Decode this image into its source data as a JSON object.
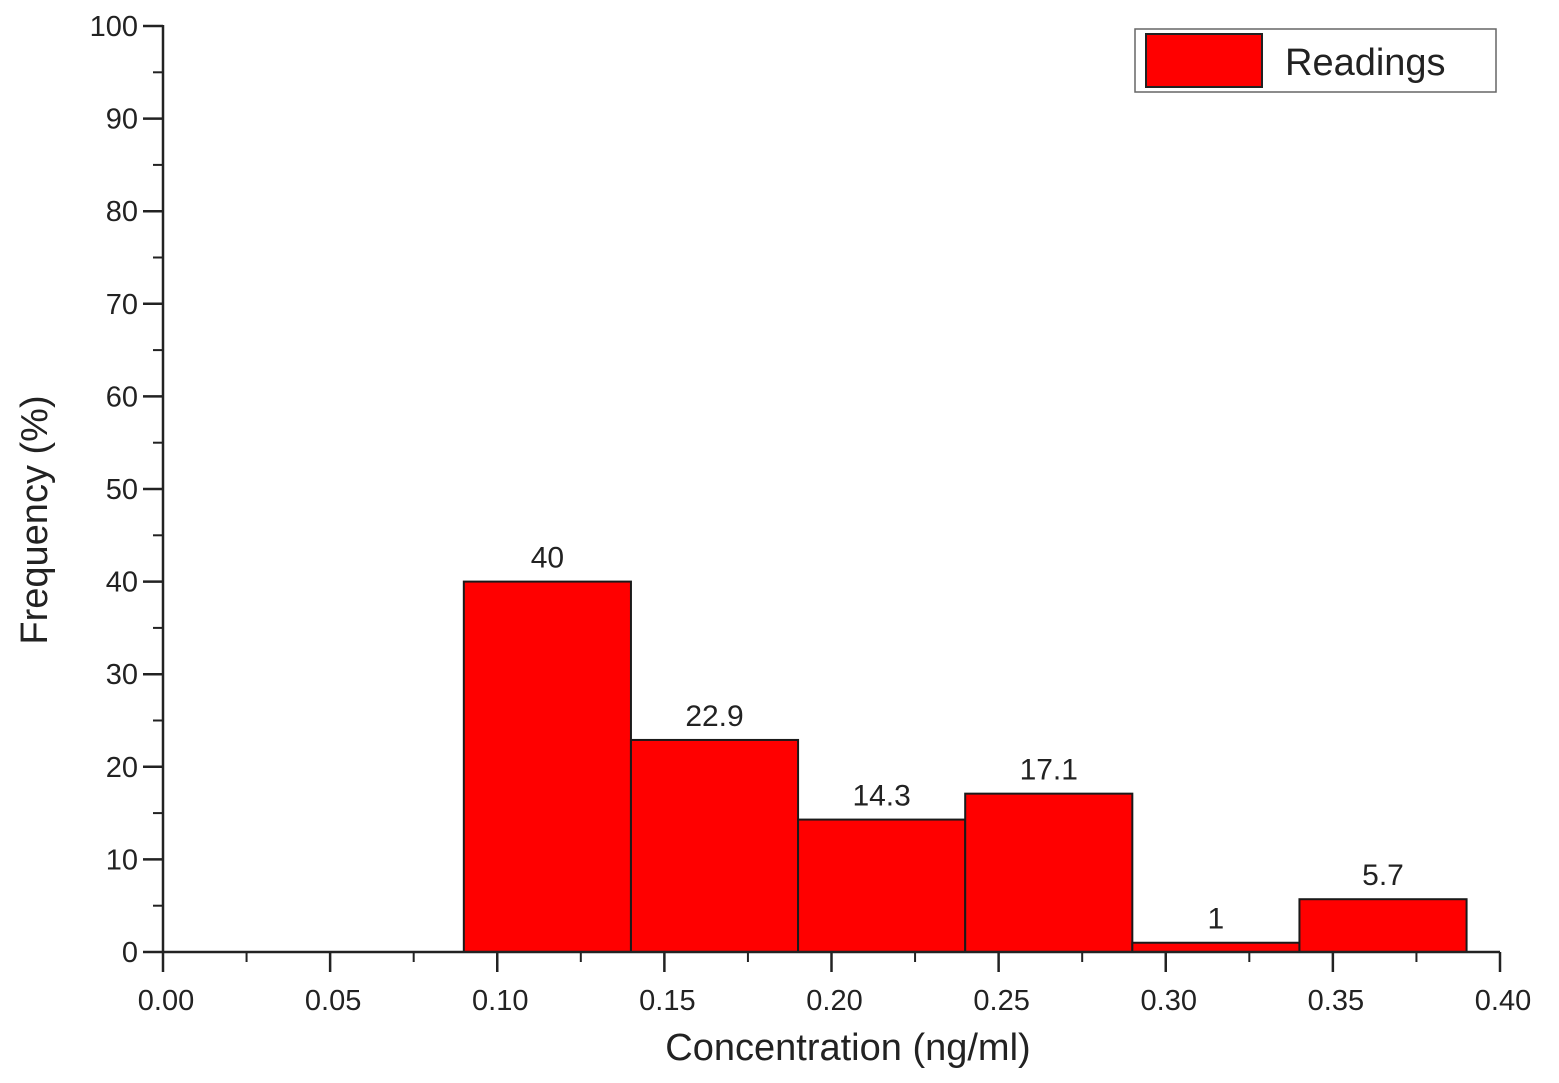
{
  "chart_data": {
    "type": "bar",
    "bars": [
      {
        "x0": 0.09,
        "x1": 0.14,
        "value": 40,
        "label": "40"
      },
      {
        "x0": 0.14,
        "x1": 0.19,
        "value": 22.9,
        "label": "22.9"
      },
      {
        "x0": 0.19,
        "x1": 0.24,
        "value": 14.3,
        "label": "14.3"
      },
      {
        "x0": 0.24,
        "x1": 0.29,
        "value": 17.1,
        "label": "17.1"
      },
      {
        "x0": 0.29,
        "x1": 0.34,
        "value": 1,
        "label": "1"
      },
      {
        "x0": 0.34,
        "x1": 0.39,
        "value": 5.7,
        "label": "5.7"
      }
    ],
    "series": [
      {
        "name": "Readings",
        "color": "#ff0000"
      }
    ],
    "xlabel": "Concentration (ng/ml)",
    "ylabel": "Frequency (%)",
    "xlim": [
      0.0,
      0.4
    ],
    "ylim": [
      0,
      100
    ],
    "xticks": [
      "0.00",
      "0.05",
      "0.10",
      "0.15",
      "0.20",
      "0.25",
      "0.30",
      "0.35",
      "0.40"
    ],
    "yticks": [
      "0",
      "10",
      "20",
      "30",
      "40",
      "50",
      "60",
      "70",
      "80",
      "90",
      "100"
    ],
    "grid": false,
    "legend_position": "top-right"
  }
}
